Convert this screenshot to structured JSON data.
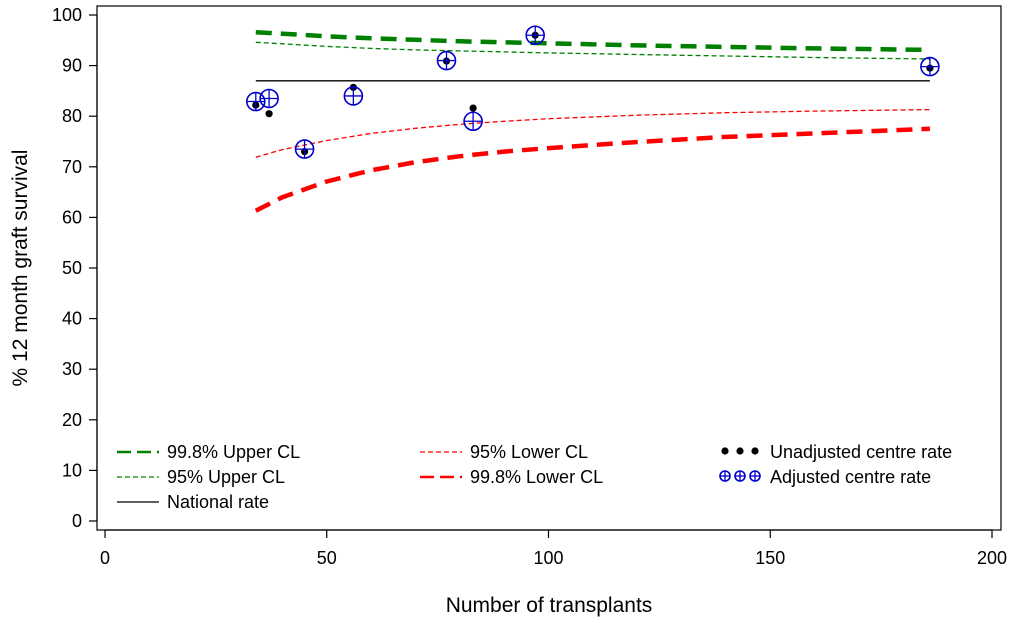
{
  "chart_data": {
    "type": "scatter",
    "title": "",
    "xlabel": "Number of transplants",
    "ylabel": "% 12 month graft survival",
    "xlim": [
      0,
      200
    ],
    "ylim": [
      0,
      100
    ],
    "x_ticks": [
      0,
      50,
      100,
      150,
      200
    ],
    "y_ticks": [
      0,
      10,
      20,
      30,
      40,
      50,
      60,
      70,
      80,
      90,
      100
    ],
    "grid": false,
    "legend_position": "bottom-inside",
    "national_rate": 87,
    "lines": [
      {
        "name": "99.8% Upper CL",
        "color": "#008000",
        "style": "long-dash",
        "weight": "thick",
        "x": [
          34,
          40,
          50,
          60,
          70,
          80,
          90,
          100,
          120,
          140,
          160,
          186
        ],
        "y": [
          96.6,
          96.3,
          95.8,
          95.4,
          95.1,
          94.8,
          94.6,
          94.4,
          94.0,
          93.7,
          93.4,
          93.1
        ]
      },
      {
        "name": "95% Upper CL",
        "color": "#008000",
        "style": "short-dash",
        "weight": "thin",
        "x": [
          34,
          40,
          50,
          60,
          70,
          80,
          90,
          100,
          120,
          140,
          160,
          186
        ],
        "y": [
          94.6,
          94.3,
          93.8,
          93.4,
          93.1,
          92.9,
          92.7,
          92.5,
          92.2,
          91.9,
          91.6,
          91.3
        ]
      },
      {
        "name": "National rate",
        "color": "#000000",
        "style": "solid",
        "weight": "thin",
        "x": [
          34,
          186
        ],
        "y": [
          87,
          87
        ]
      },
      {
        "name": "95% Lower CL",
        "color": "#ff0000",
        "style": "short-dash",
        "weight": "thin",
        "x": [
          34,
          40,
          50,
          60,
          70,
          80,
          90,
          100,
          120,
          140,
          160,
          186
        ],
        "y": [
          71.9,
          73.4,
          75.2,
          76.6,
          77.6,
          78.4,
          79.0,
          79.5,
          80.2,
          80.7,
          81.0,
          81.3
        ]
      },
      {
        "name": "99.8% Lower CL",
        "color": "#ff0000",
        "style": "long-dash",
        "weight": "thick",
        "x": [
          34,
          40,
          50,
          60,
          70,
          80,
          90,
          100,
          120,
          140,
          160,
          186
        ],
        "y": [
          61.3,
          64.0,
          67.1,
          69.3,
          70.9,
          72.1,
          73.0,
          73.7,
          74.9,
          75.9,
          76.6,
          77.5
        ]
      }
    ],
    "series": [
      {
        "name": "Unadjusted centre rate",
        "color": "#000000",
        "marker": "dot",
        "x": [
          34,
          37,
          45,
          56,
          77,
          83,
          97,
          186
        ],
        "y": [
          82.2,
          80.5,
          73.0,
          85.7,
          90.9,
          81.6,
          96.0,
          89.5
        ]
      },
      {
        "name": "Adjusted centre rate",
        "color": "#0000cc",
        "marker": "circle-plus",
        "x": [
          34,
          37,
          45,
          56,
          77,
          83,
          97,
          186
        ],
        "y": [
          82.9,
          83.5,
          73.5,
          84.0,
          91.0,
          79.0,
          96.0,
          89.8
        ]
      }
    ],
    "legend": [
      {
        "label": "99.8% Upper CL",
        "ref": "line",
        "index": 0
      },
      {
        "label": "95% Upper CL",
        "ref": "line",
        "index": 1
      },
      {
        "label": "National rate",
        "ref": "line",
        "index": 2
      },
      {
        "label": "95% Lower CL",
        "ref": "line",
        "index": 3
      },
      {
        "label": "99.8% Lower CL",
        "ref": "line",
        "index": 4
      },
      {
        "label": "Unadjusted centre rate",
        "ref": "series",
        "index": 0
      },
      {
        "label": "Adjusted centre rate",
        "ref": "series",
        "index": 1
      }
    ]
  }
}
